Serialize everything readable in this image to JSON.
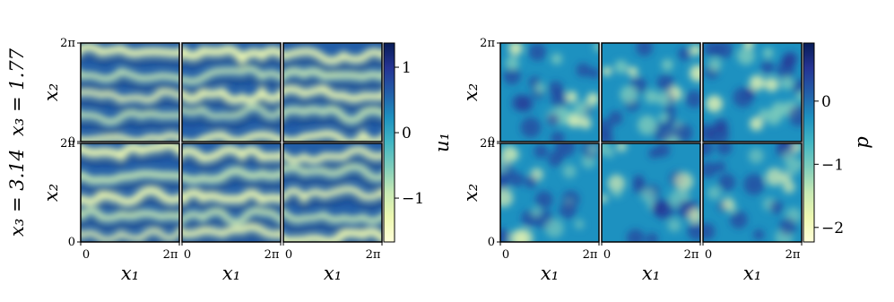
{
  "chart_data": [
    {
      "type": "heatmap",
      "nrows": 2,
      "ncols": 3,
      "row_labels": [
        "x₃ = 1.77",
        "x₃ = 3.14"
      ],
      "xlabel": "x₁",
      "ylabel": "x₂",
      "xticks": [
        {
          "value": 0,
          "label": "0"
        },
        {
          "value": 6.283,
          "label": "2π"
        }
      ],
      "yticks": [
        {
          "value": 0,
          "label": "0"
        },
        {
          "value": 6.283,
          "label": "2π"
        }
      ],
      "xlim": [
        0,
        6.283
      ],
      "ylim": [
        0,
        6.283
      ],
      "colorbar_label": "u₁",
      "clim": [
        -1.67,
        1.37
      ],
      "cticks": [
        1,
        0,
        {
          "value": -1,
          "label": "−1"
        }
      ],
      "colormap": [
        "#ffffd9",
        "#edf8b1",
        "#c7e9b4",
        "#7fcdbb",
        "#41b6c4",
        "#1d91c0",
        "#225ea8",
        "#253494",
        "#081d58"
      ]
    },
    {
      "type": "heatmap",
      "nrows": 2,
      "ncols": 3,
      "xlabel": "x₁",
      "ylabel": "x₂",
      "xticks": [
        {
          "value": 0,
          "label": "0"
        },
        {
          "value": 6.283,
          "label": "2π"
        }
      ],
      "yticks": [
        {
          "value": 0,
          "label": "0"
        },
        {
          "value": 6.283,
          "label": "2π"
        }
      ],
      "xlim": [
        0,
        6.283
      ],
      "ylim": [
        0,
        6.283
      ],
      "colorbar_label": "p",
      "clim": [
        -2.23,
        0.92
      ],
      "cticks": [
        0,
        {
          "value": -1,
          "label": "−1"
        },
        {
          "value": -2,
          "label": "−2"
        }
      ],
      "colormap": [
        "#ffffd9",
        "#edf8b1",
        "#c7e9b4",
        "#7fcdbb",
        "#41b6c4",
        "#1d91c0",
        "#225ea8",
        "#253494",
        "#081d58"
      ]
    }
  ]
}
